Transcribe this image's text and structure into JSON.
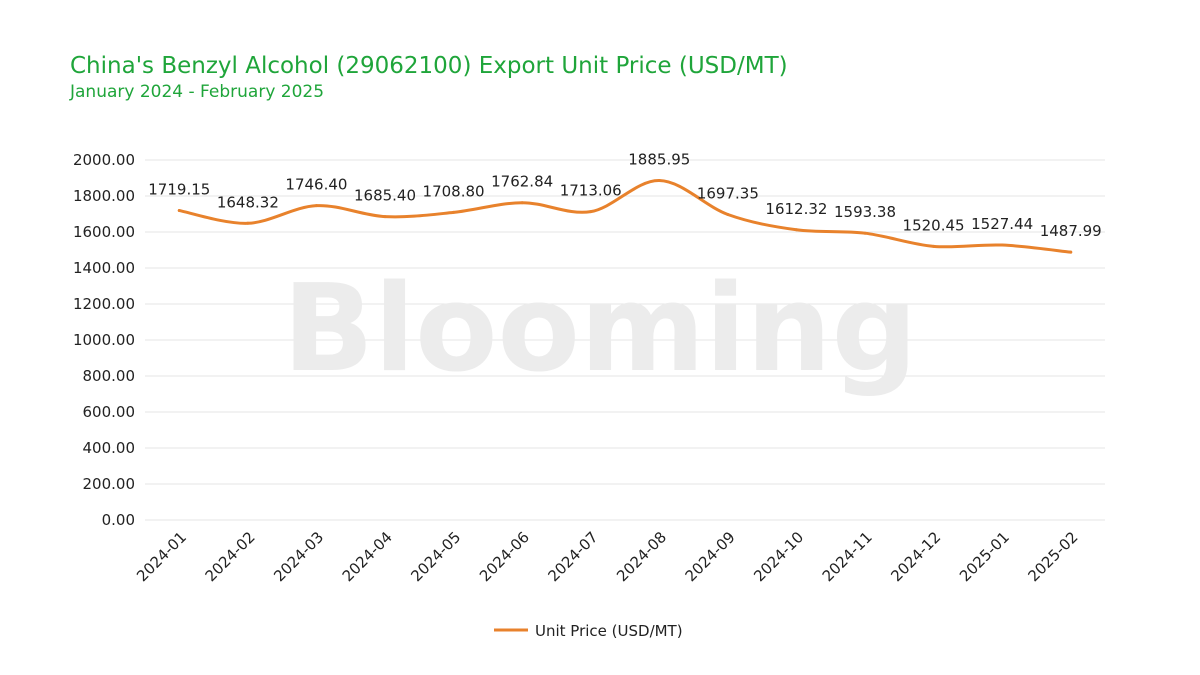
{
  "colors": {
    "title": "#1fa53a",
    "series_line": "#e8822c",
    "gridline": "#e6e6e6",
    "watermark": "#ececec"
  },
  "watermark": {
    "text": "Blooming"
  },
  "chart_data": {
    "type": "line",
    "title": "China's Benzyl Alcohol (29062100) Export Unit Price (USD/MT)",
    "subtitle": "January 2024 - February 2025",
    "categories": [
      "2024-01",
      "2024-02",
      "2024-03",
      "2024-04",
      "2024-05",
      "2024-06",
      "2024-07",
      "2024-08",
      "2024-09",
      "2024-10",
      "2024-11",
      "2024-12",
      "2025-01",
      "2025-02"
    ],
    "series": [
      {
        "name": "Unit Price (USD/MT)",
        "values": [
          1719.15,
          1648.32,
          1746.4,
          1685.4,
          1708.8,
          1762.84,
          1713.06,
          1885.95,
          1697.35,
          1612.32,
          1593.38,
          1520.45,
          1527.44,
          1487.99
        ],
        "labels": [
          "1719.15",
          "1648.32",
          "1746.40",
          "1685.40",
          "1708.80",
          "1762.84",
          "1713.06",
          "1885.95",
          "1697.35",
          "1612.32",
          "1593.38",
          "1520.45",
          "1527.44",
          "1487.99"
        ]
      }
    ],
    "y_ticks": [
      "0.00",
      "200.00",
      "400.00",
      "600.00",
      "800.00",
      "1000.00",
      "1200.00",
      "1400.00",
      "1600.00",
      "1800.00",
      "2000.00"
    ],
    "ylim": [
      0,
      2000
    ],
    "grid": true,
    "smooth": true,
    "legend": "bottom-center"
  }
}
